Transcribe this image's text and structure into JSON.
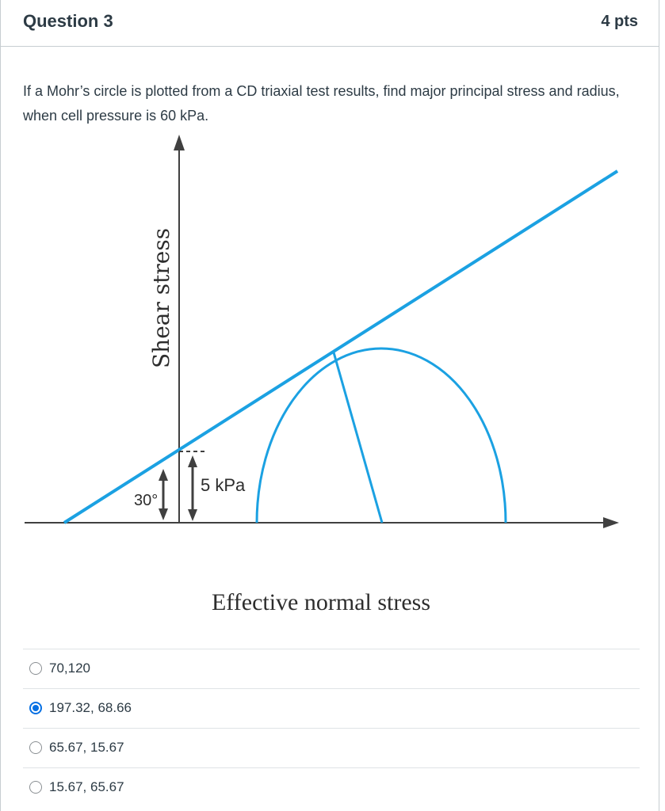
{
  "question": {
    "title": "Question 3",
    "points": "4 pts",
    "text": "If a Mohr’s circle is plotted from a CD triaxial test results, find major principal stress and radius, when cell pressure is 60 kPa."
  },
  "diagram": {
    "y_axis_label": "Shear stress",
    "x_axis_label": "Effective normal stress",
    "angle_label": "30°",
    "cohesion_label": "5 kPa",
    "line_color": "#1ba1e2",
    "axis_color": "#404040"
  },
  "answers": [
    {
      "label": "70,120",
      "selected": false
    },
    {
      "label": "197.32, 68.66",
      "selected": true
    },
    {
      "label": "65.67, 15.67",
      "selected": false
    },
    {
      "label": "15.67, 65.67",
      "selected": false
    }
  ]
}
